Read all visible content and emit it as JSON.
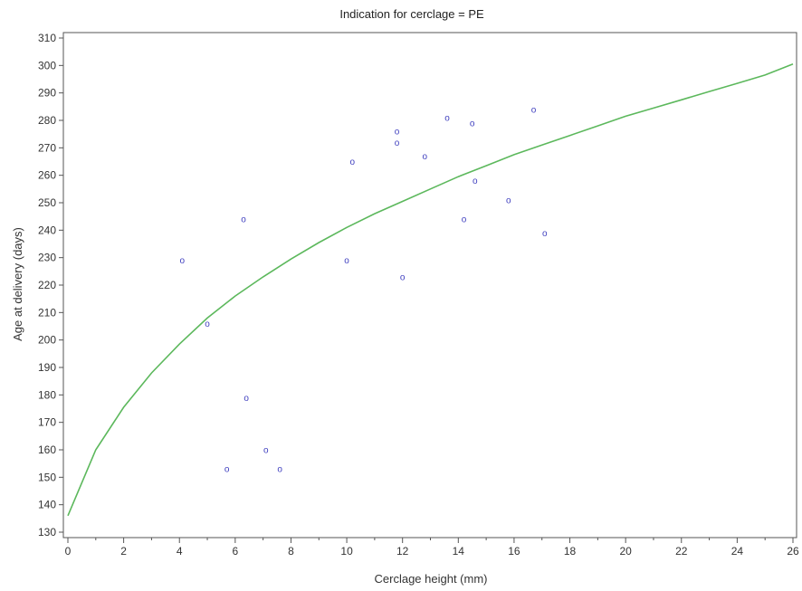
{
  "chart_data": {
    "type": "scatter",
    "title": "Indication for cerclage = PE",
    "xlabel": "Cerclage height (mm)",
    "ylabel": "Age at delivery (days)",
    "xlim": [
      0,
      26
    ],
    "ylim": [
      130,
      310
    ],
    "xticks": [
      0,
      2,
      4,
      6,
      8,
      10,
      12,
      14,
      16,
      18,
      20,
      22,
      24,
      26
    ],
    "xminor": [
      1,
      3,
      5,
      7,
      9,
      11,
      13,
      15,
      17,
      19,
      21,
      23,
      25
    ],
    "yticks": [
      130,
      140,
      150,
      160,
      170,
      180,
      190,
      200,
      210,
      220,
      230,
      240,
      250,
      260,
      270,
      280,
      290,
      300,
      310
    ],
    "grid": false,
    "marker_symbol": "o",
    "series": [
      {
        "type": "scatter",
        "color": "#3f3fbf",
        "points": [
          [
            4.1,
            229
          ],
          [
            5.0,
            206
          ],
          [
            5.7,
            153
          ],
          [
            6.3,
            244
          ],
          [
            6.4,
            179
          ],
          [
            7.1,
            160
          ],
          [
            7.6,
            153
          ],
          [
            10.0,
            229
          ],
          [
            10.2,
            265
          ],
          [
            11.8,
            276
          ],
          [
            11.8,
            272
          ],
          [
            12.0,
            223
          ],
          [
            12.8,
            267
          ],
          [
            13.6,
            281
          ],
          [
            14.2,
            244
          ],
          [
            14.5,
            279
          ],
          [
            14.6,
            258
          ],
          [
            15.8,
            251
          ],
          [
            16.7,
            284
          ],
          [
            17.1,
            239
          ]
        ]
      },
      {
        "type": "line",
        "color": "#5cb85c",
        "points": [
          [
            0,
            136
          ],
          [
            1,
            160
          ],
          [
            2,
            175.5
          ],
          [
            3,
            188
          ],
          [
            4,
            198.5
          ],
          [
            5,
            208
          ],
          [
            6,
            216
          ],
          [
            7,
            223
          ],
          [
            8,
            229.5
          ],
          [
            9,
            235.5
          ],
          [
            10,
            241
          ],
          [
            11,
            246
          ],
          [
            12,
            250.5
          ],
          [
            13,
            255
          ],
          [
            14,
            259.5
          ],
          [
            15,
            263.5
          ],
          [
            16,
            267.5
          ],
          [
            17,
            271
          ],
          [
            18,
            274.5
          ],
          [
            19,
            278
          ],
          [
            20,
            281.5
          ],
          [
            21,
            284.5
          ],
          [
            22,
            287.5
          ],
          [
            23,
            290.5
          ],
          [
            24,
            293.5
          ],
          [
            25,
            296.5
          ],
          [
            26,
            300.5
          ]
        ]
      }
    ]
  }
}
